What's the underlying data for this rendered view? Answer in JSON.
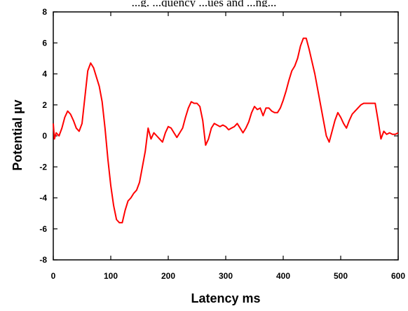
{
  "header_text": "...g. ...quency ...ues and ...ng...",
  "chart_data": {
    "type": "line",
    "title": "",
    "xlabel": "Latency ms",
    "ylabel": "Potential µv",
    "xlim": [
      0,
      600
    ],
    "ylim": [
      -8,
      8
    ],
    "x_ticks": [
      0,
      100,
      200,
      300,
      400,
      500,
      600
    ],
    "y_ticks": [
      -8,
      -6,
      -4,
      -2,
      0,
      2,
      4,
      6,
      8
    ],
    "grid": false,
    "legend": "none",
    "series": [
      {
        "color": "#ff0000",
        "x": [
          0,
          2,
          5,
          10,
          15,
          20,
          25,
          30,
          35,
          40,
          45,
          50,
          55,
          60,
          65,
          70,
          75,
          80,
          85,
          90,
          95,
          100,
          105,
          110,
          115,
          120,
          125,
          130,
          135,
          140,
          145,
          150,
          155,
          160,
          165,
          170,
          175,
          180,
          185,
          190,
          195,
          200,
          205,
          210,
          215,
          220,
          225,
          230,
          235,
          240,
          245,
          250,
          255,
          260,
          265,
          270,
          275,
          280,
          285,
          290,
          295,
          300,
          305,
          310,
          315,
          320,
          325,
          330,
          335,
          340,
          345,
          350,
          355,
          360,
          365,
          370,
          375,
          380,
          385,
          390,
          395,
          400,
          405,
          410,
          415,
          420,
          425,
          430,
          435,
          440,
          445,
          450,
          455,
          460,
          465,
          470,
          475,
          480,
          485,
          490,
          495,
          500,
          505,
          510,
          515,
          520,
          525,
          530,
          535,
          540,
          545,
          550,
          555,
          560,
          565,
          570,
          575,
          580,
          585,
          590,
          595,
          600
        ],
        "y": [
          0.8,
          -0.2,
          0.2,
          0.0,
          0.5,
          1.2,
          1.6,
          1.4,
          1.0,
          0.5,
          0.3,
          0.8,
          2.5,
          4.2,
          4.7,
          4.4,
          3.8,
          3.2,
          2.2,
          0.5,
          -1.5,
          -3.2,
          -4.5,
          -5.4,
          -5.6,
          -5.6,
          -4.8,
          -4.2,
          -4.0,
          -3.7,
          -3.5,
          -3.0,
          -2.0,
          -1.0,
          0.5,
          -0.2,
          0.2,
          0.0,
          -0.2,
          -0.4,
          0.2,
          0.6,
          0.5,
          0.2,
          -0.1,
          0.2,
          0.5,
          1.2,
          1.8,
          2.2,
          2.1,
          2.1,
          1.9,
          1.0,
          -0.6,
          -0.2,
          0.5,
          0.8,
          0.7,
          0.6,
          0.7,
          0.6,
          0.4,
          0.5,
          0.6,
          0.8,
          0.5,
          0.2,
          0.5,
          0.9,
          1.5,
          1.9,
          1.7,
          1.8,
          1.3,
          1.8,
          1.8,
          1.6,
          1.5,
          1.5,
          1.8,
          2.3,
          2.9,
          3.6,
          4.2,
          4.5,
          5.0,
          5.8,
          6.3,
          6.3,
          5.6,
          4.8,
          4.0,
          3.0,
          2.0,
          1.0,
          0.0,
          -0.4,
          0.3,
          1.0,
          1.5,
          1.2,
          0.8,
          0.5,
          1.0,
          1.4,
          1.6,
          1.8,
          2.0,
          2.1,
          2.1,
          2.1,
          2.1,
          2.1,
          1.0,
          -0.2,
          0.3,
          0.1,
          0.2,
          0.1,
          0.1,
          0.2
        ]
      }
    ]
  }
}
